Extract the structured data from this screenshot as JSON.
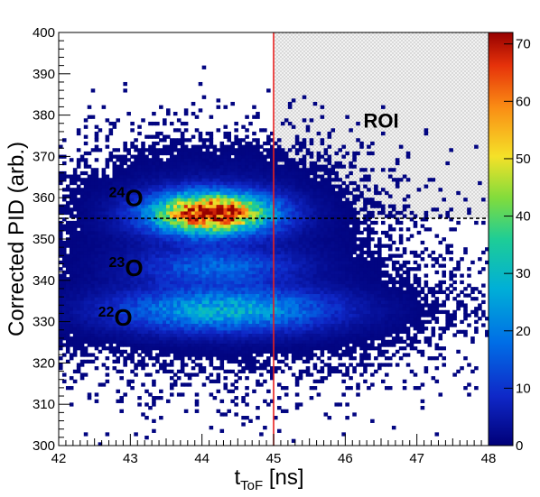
{
  "chart_data": {
    "type": "heatmap",
    "xlabel": "t",
    "xlabel_sub": "ToF",
    "xlabel_unit": " [ns]",
    "ylabel": "Corrected PID (arb.)",
    "xlim": [
      42,
      48
    ],
    "ylim": [
      300,
      400
    ],
    "x_ticks": [
      "42",
      "43",
      "44",
      "45",
      "46",
      "47",
      "48"
    ],
    "y_ticks": [
      "300",
      "310",
      "320",
      "330",
      "340",
      "350",
      "360",
      "370",
      "380",
      "390",
      "400"
    ],
    "colorbar": {
      "min": 0,
      "max": 72,
      "ticks": [
        "0",
        "10",
        "20",
        "30",
        "40",
        "50",
        "60",
        "70"
      ]
    },
    "vertical_cut": {
      "x": 45,
      "color": "#e8201e"
    },
    "horizontal_cut": {
      "y": 355,
      "style": "dashed"
    },
    "roi": {
      "label": "ROI",
      "x": [
        45,
        48
      ],
      "y": [
        355,
        400
      ]
    },
    "isotopes": [
      {
        "mass": "24",
        "symbol": "O",
        "x": 42.7,
        "y": 358
      },
      {
        "mass": "23",
        "symbol": "O",
        "x": 42.7,
        "y": 341
      },
      {
        "mass": "22",
        "symbol": "O",
        "x": 42.55,
        "y": 329
      }
    ],
    "clusters": [
      {
        "name": "24O",
        "cx": 44.1,
        "cy": 356,
        "sx": 0.55,
        "sy": 3.2,
        "peak": 72
      },
      {
        "name": "23O",
        "cx": 44.2,
        "cy": 343,
        "sx": 0.7,
        "sy": 2.8,
        "peak": 14
      },
      {
        "name": "22O",
        "cx": 44.3,
        "cy": 332.5,
        "sx": 1.0,
        "sy": 3.5,
        "peak": 26
      }
    ]
  }
}
